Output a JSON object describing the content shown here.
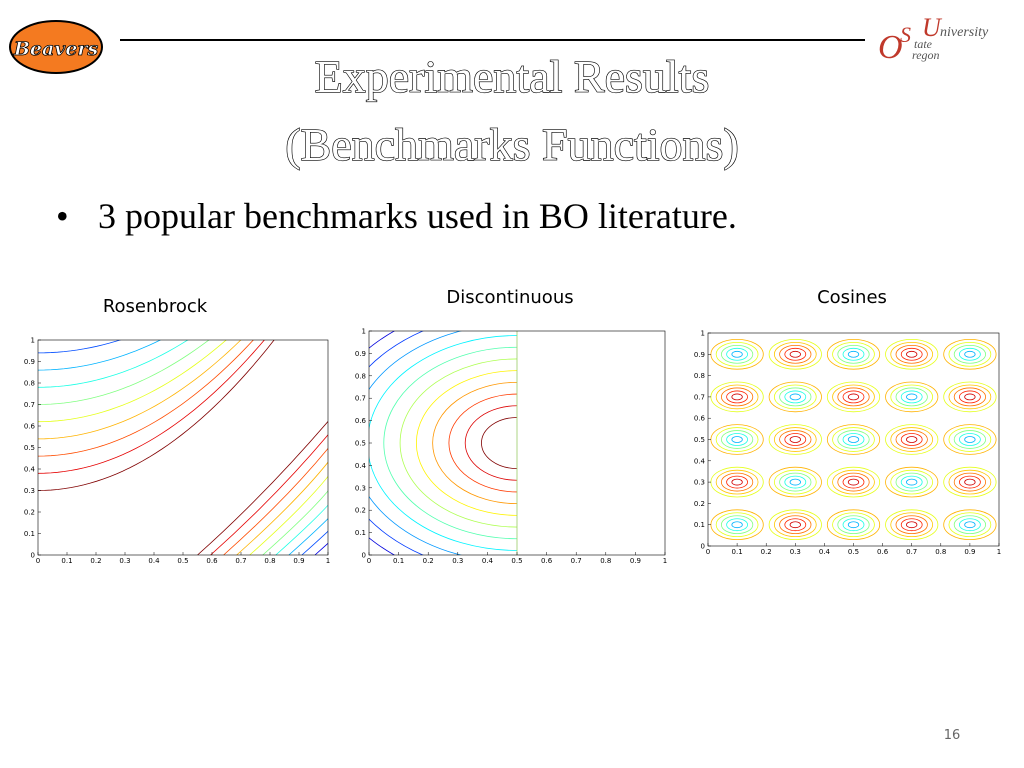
{
  "header": {
    "logo_left": "Beavers",
    "logo_right": {
      "letter_o": "O",
      "letter_s": "S",
      "letter_u": "U",
      "university": "niversity",
      "state": "tate",
      "oregon": "regon"
    },
    "title_lines": [
      "Experimental Results",
      "(Benchmarks Functions)"
    ]
  },
  "bullets": [
    "3 popular benchmarks used in BO literature."
  ],
  "plots": [
    {
      "title": "Rosenbrock",
      "xticks": [
        0,
        0.1,
        0.2,
        0.3,
        0.4,
        0.5,
        0.6,
        0.7,
        0.8,
        0.9,
        1
      ],
      "yticks": [
        0,
        0.1,
        0.2,
        0.3,
        0.4,
        0.5,
        0.6,
        0.7,
        0.8,
        0.9,
        1
      ]
    },
    {
      "title": "Discontinuous",
      "xticks": [
        0,
        0.1,
        0.2,
        0.3,
        0.4,
        0.5,
        0.6,
        0.7,
        0.8,
        0.9,
        1
      ],
      "yticks": [
        0,
        0.1,
        0.2,
        0.3,
        0.4,
        0.5,
        0.6,
        0.7,
        0.8,
        0.9,
        1
      ]
    },
    {
      "title": "Cosines",
      "xticks": [
        0,
        0.1,
        0.2,
        0.3,
        0.4,
        0.5,
        0.6,
        0.7,
        0.8,
        0.9,
        1
      ],
      "yticks": [
        0,
        0.1,
        0.2,
        0.3,
        0.4,
        0.5,
        0.6,
        0.7,
        0.8,
        0.9,
        1
      ]
    }
  ],
  "page_number": "16"
}
